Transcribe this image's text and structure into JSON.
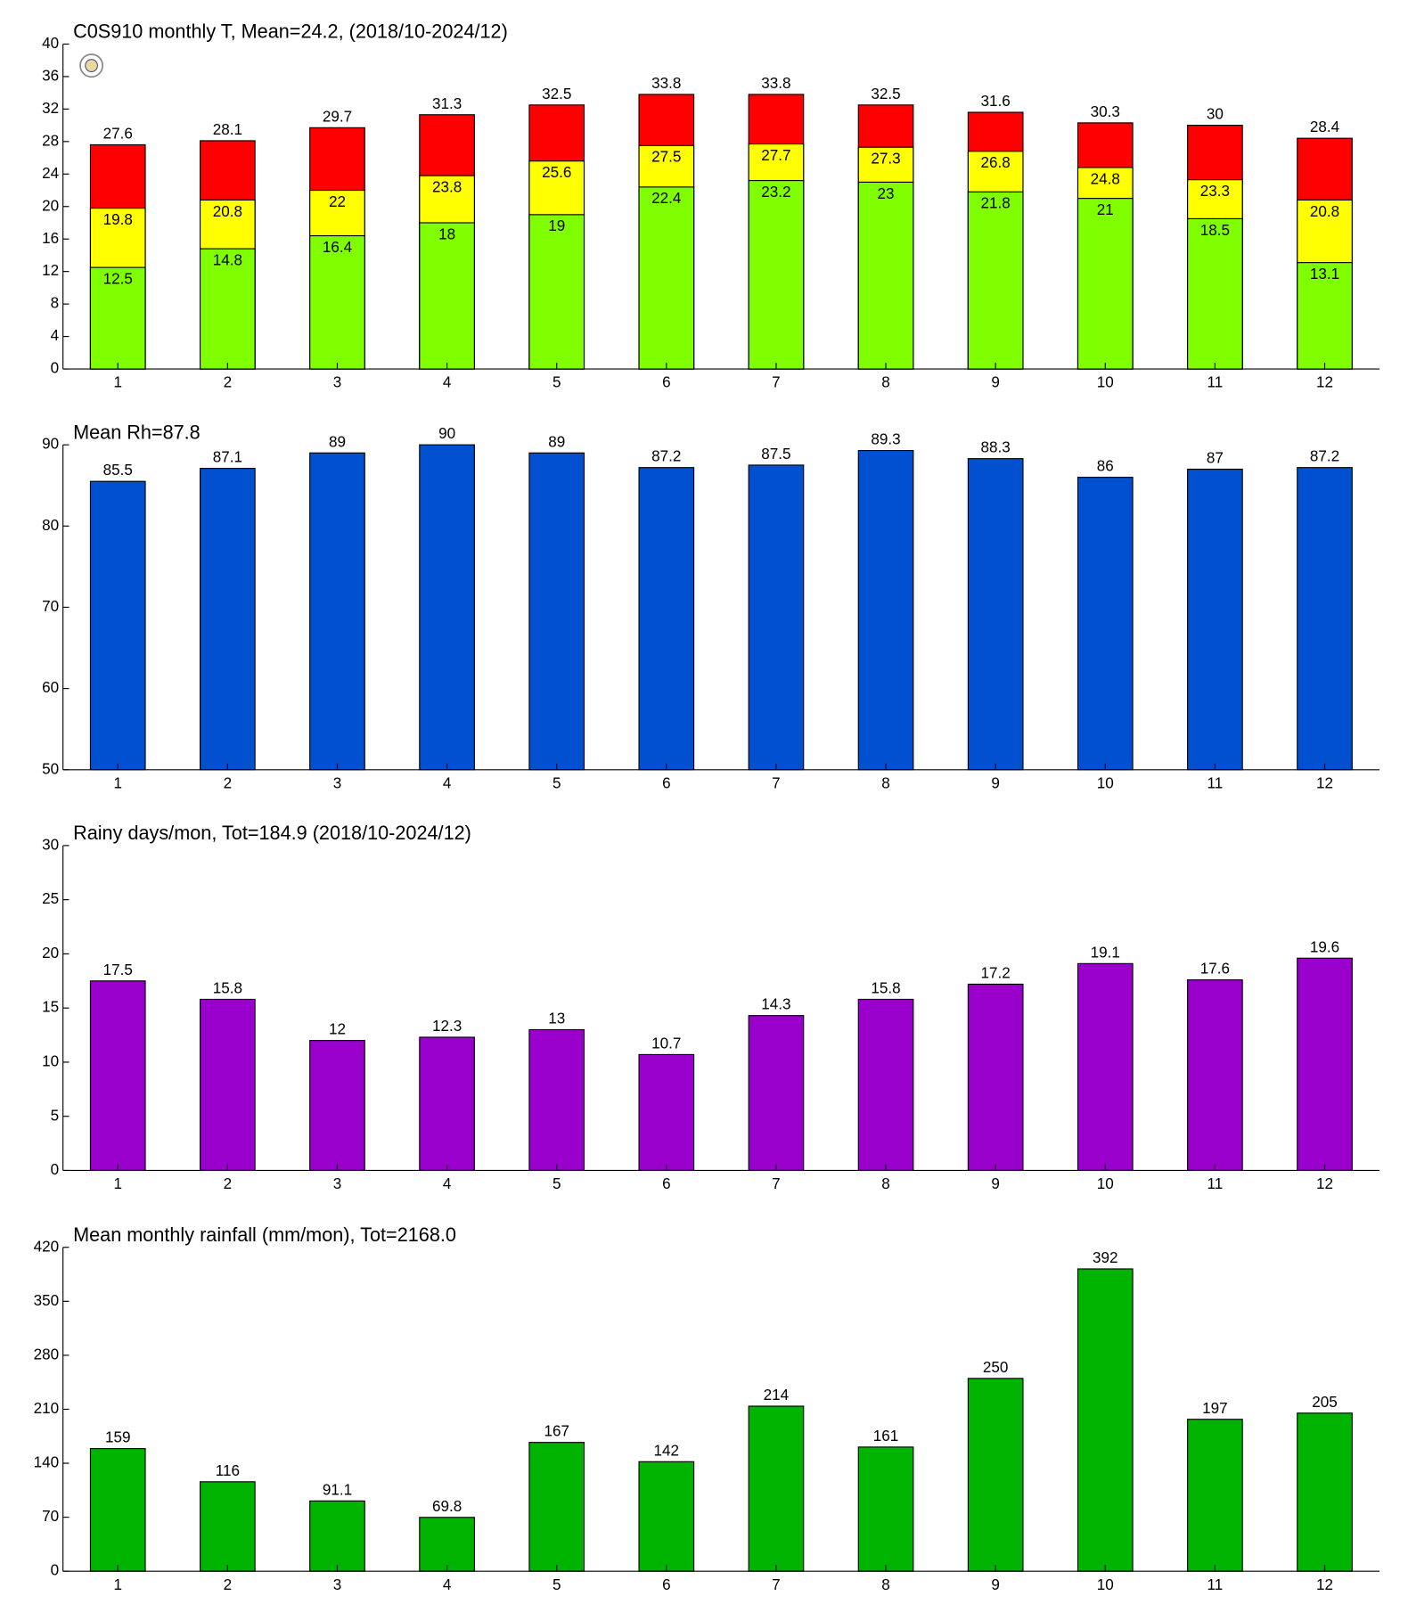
{
  "chart_data": [
    {
      "type": "bar",
      "title": "C0S910 monthly T, Mean=24.2, (2018/10-2024/12)",
      "categories": [
        "1",
        "2",
        "3",
        "4",
        "5",
        "6",
        "7",
        "8",
        "9",
        "10",
        "11",
        "12"
      ],
      "series": [
        {
          "color": "#ff0000",
          "values": [
            27.6,
            28.1,
            29.7,
            31.3,
            32.5,
            33.8,
            33.8,
            32.5,
            31.6,
            30.3,
            30,
            28.4
          ]
        },
        {
          "color": "#ffff00",
          "values": [
            19.8,
            20.8,
            22,
            23.8,
            25.6,
            27.5,
            27.7,
            27.3,
            26.8,
            24.8,
            23.3,
            20.8
          ]
        },
        {
          "color": "#80ff00",
          "values": [
            12.5,
            14.8,
            16.4,
            18,
            19,
            22.4,
            23.2,
            23,
            21.8,
            21,
            18.5,
            13.1
          ]
        }
      ],
      "ylim": [
        0,
        40
      ],
      "yticks": [
        0,
        4,
        8,
        12,
        16,
        20,
        24,
        28,
        32,
        36,
        40
      ]
    },
    {
      "type": "bar",
      "title": "Mean Rh=87.8",
      "categories": [
        "1",
        "2",
        "3",
        "4",
        "5",
        "6",
        "7",
        "8",
        "9",
        "10",
        "11",
        "12"
      ],
      "series": [
        {
          "color": "#0050d0",
          "values": [
            85.5,
            87.1,
            89,
            90,
            89,
            87.2,
            87.5,
            89.3,
            88.3,
            86,
            87,
            87.2
          ]
        }
      ],
      "ylim": [
        50,
        90
      ],
      "yticks": [
        50,
        60,
        70,
        80,
        90
      ]
    },
    {
      "type": "bar",
      "title": "Rainy days/mon, Tot=184.9 (2018/10-2024/12)",
      "categories": [
        "1",
        "2",
        "3",
        "4",
        "5",
        "6",
        "7",
        "8",
        "9",
        "10",
        "11",
        "12"
      ],
      "series": [
        {
          "color": "#9900cc",
          "values": [
            17.5,
            15.8,
            12,
            12.3,
            13,
            10.7,
            14.3,
            15.8,
            17.2,
            19.1,
            17.6,
            19.6
          ]
        }
      ],
      "ylim": [
        0,
        30
      ],
      "yticks": [
        0,
        5,
        10,
        15,
        20,
        25,
        30
      ]
    },
    {
      "type": "bar",
      "title": "Mean monthly rainfall (mm/mon), Tot=2168.0",
      "categories": [
        "1",
        "2",
        "3",
        "4",
        "5",
        "6",
        "7",
        "8",
        "9",
        "10",
        "11",
        "12"
      ],
      "series": [
        {
          "color": "#00b300",
          "values": [
            159,
            116,
            91.1,
            69.8,
            167,
            142,
            214,
            161,
            250,
            392,
            197,
            205
          ]
        }
      ],
      "ylim": [
        0,
        420
      ],
      "yticks": [
        0,
        70,
        140,
        210,
        280,
        350,
        420
      ]
    }
  ]
}
